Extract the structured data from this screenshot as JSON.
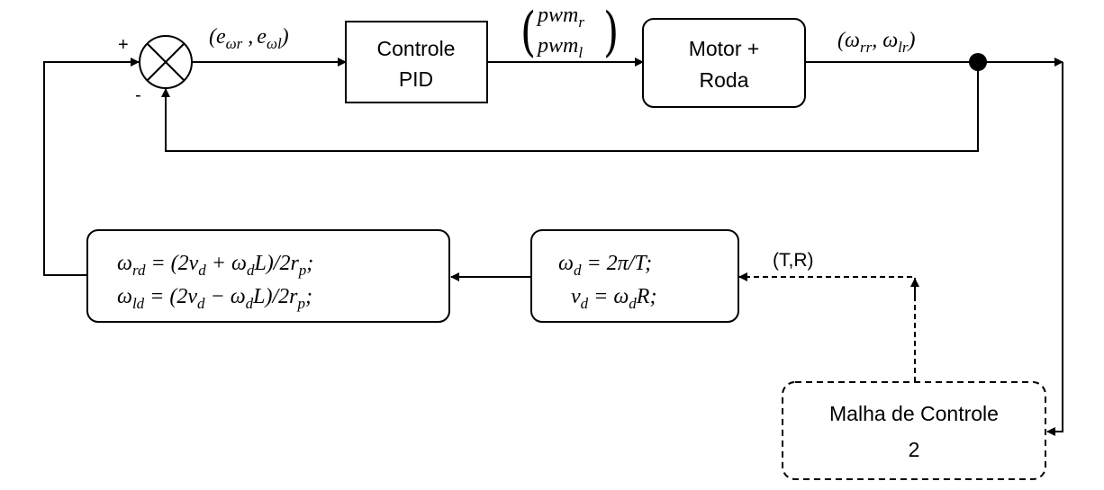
{
  "blocks": {
    "pid": {
      "line1": "Controle",
      "line2": "PID"
    },
    "motor": {
      "line1": "Motor +",
      "line2": "Roda"
    },
    "outer": {
      "line1": "Malha de Controle",
      "line2": "2"
    }
  },
  "summing": {
    "plus": "+",
    "minus": "-"
  },
  "signals": {
    "error": {
      "open": "(",
      "e1": "e",
      "e1_sub": "ωr",
      "sep": " ,",
      "e2": "e",
      "e2_sub": "ωl",
      "close": ")"
    },
    "pwm": {
      "r": "pwm",
      "r_sub": "r",
      "l": "pwm",
      "l_sub": "l",
      "open": "(",
      "close": ")"
    },
    "omega": {
      "open": "(",
      "w1": "ω",
      "w1_sub": "rr",
      "sep": ", ",
      "w2": "ω",
      "w2_sub": "lr",
      "close": ")"
    },
    "tr": "(T,R)"
  },
  "equations": {
    "wheels": {
      "l1_a": "ω",
      "l1_a_sub": "rd",
      "l1_b": " = (2v",
      "l1_b_sub": "d",
      "l1_c": " + ω",
      "l1_c_sub": "d",
      "l1_d": "L)/2r",
      "l1_d_sub": "p",
      "l1_e": ";",
      "l2_a": "ω",
      "l2_a_sub": "ld",
      "l2_b": " = (2v",
      "l2_b_sub": "d",
      "l2_c": " − ω",
      "l2_c_sub": "d",
      "l2_d": "L)/2r",
      "l2_d_sub": "p",
      "l2_e": ";"
    },
    "desired": {
      "l1_a": "ω",
      "l1_a_sub": "d",
      "l1_b": " = 2π/T;",
      "l2_a": "v",
      "l2_a_sub": "d",
      "l2_b": " = ω",
      "l2_b_sub": "d",
      "l2_c": "R;"
    }
  }
}
